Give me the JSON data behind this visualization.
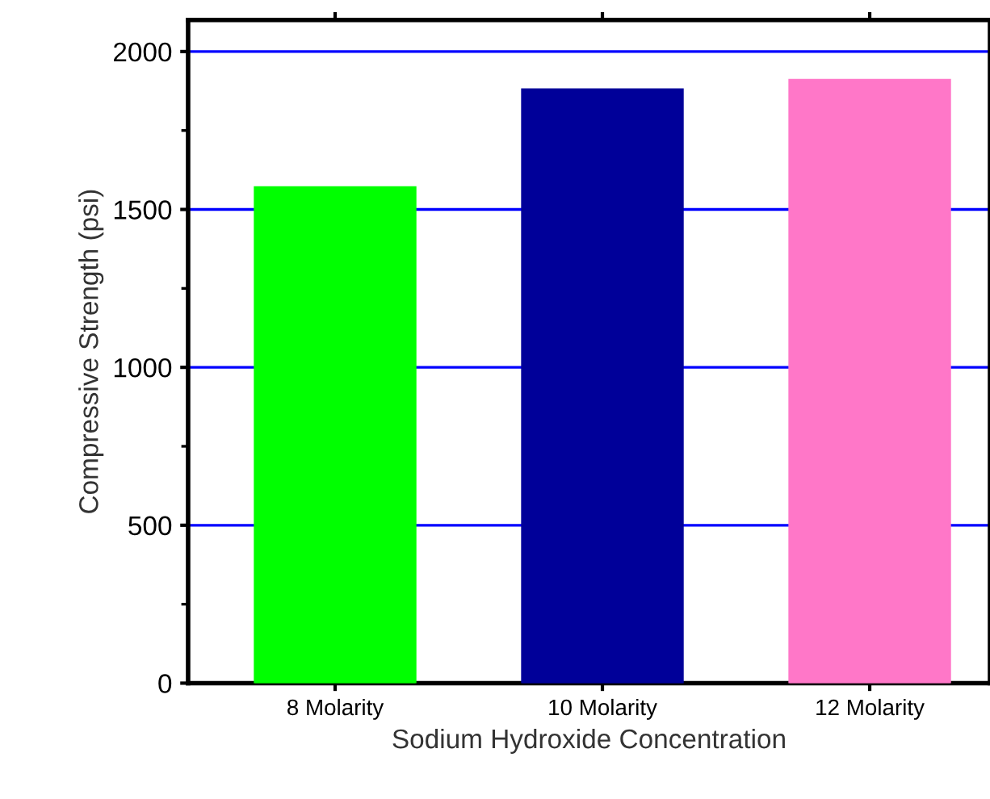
{
  "chart_data": {
    "type": "bar",
    "xlabel": "Sodium Hydroxide Concentration",
    "ylabel": "Compressive Strength (psi)",
    "categories": [
      "8 Molarity",
      "10 Molarity",
      "12 Molarity"
    ],
    "values": [
      1570,
      1880,
      1910
    ],
    "colors": [
      "#00ff00",
      "#000099",
      "#ff77c8"
    ],
    "ylim": [
      0,
      2100
    ],
    "yticks": [
      0,
      500,
      1000,
      1500,
      2000
    ],
    "grid": "y"
  }
}
